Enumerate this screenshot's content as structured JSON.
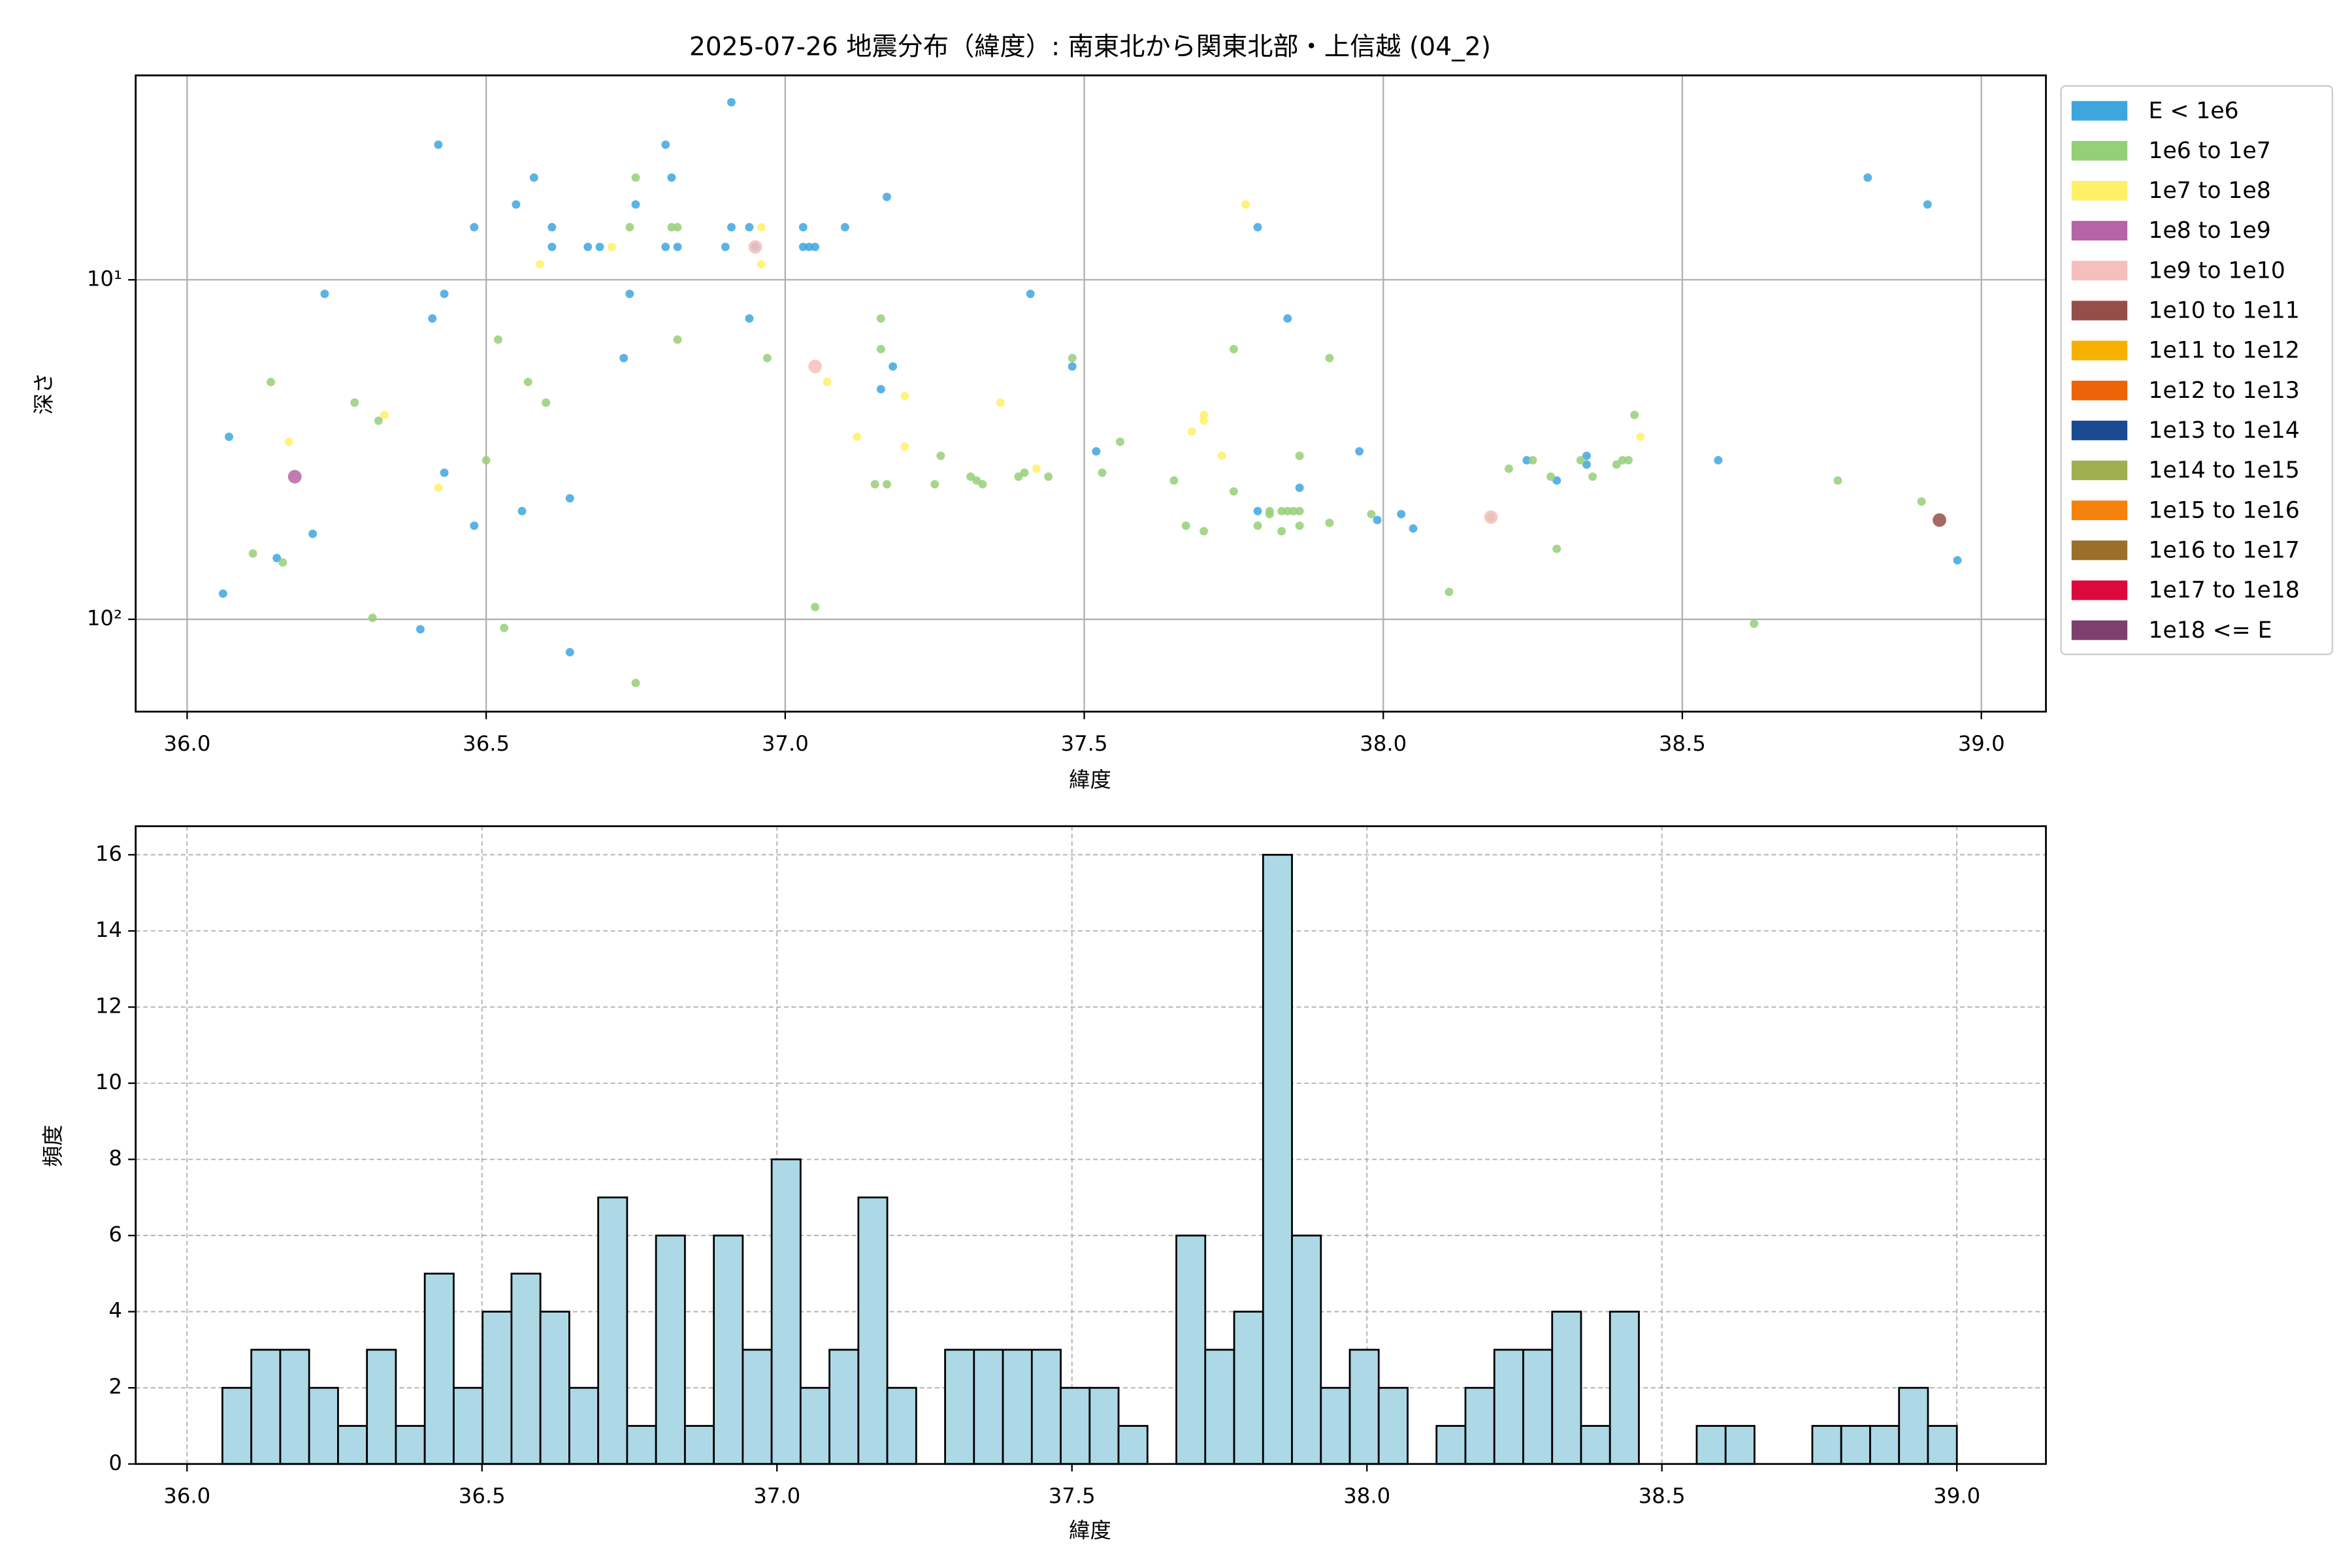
{
  "chart_data": [
    {
      "type": "scatter",
      "title": "2025-07-26 地震分布（緯度）: 南東北から関東北部・上信越 (04_2)",
      "xlabel": "緯度",
      "ylabel": "深さ",
      "xlim": [
        35.914,
        39.108
      ],
      "ylim": [
        187,
        2.5
      ],
      "ylog": true,
      "grid": true,
      "legend": "right",
      "xticks": [
        {
          "value": 36,
          "label": "36.0"
        },
        {
          "value": 36.5,
          "label": "36.5"
        },
        {
          "value": 37,
          "label": "37.0"
        },
        {
          "value": 37.5,
          "label": "37.5"
        },
        {
          "value": 38,
          "label": "38.0"
        },
        {
          "value": 38.5,
          "label": "38.5"
        },
        {
          "value": 39,
          "label": "39.0"
        }
      ],
      "yticks": [
        {
          "value": 10,
          "label": "10¹"
        },
        {
          "value": 100,
          "label": "10²"
        }
      ],
      "series": [
        {
          "name": "E < 1e6",
          "color": "#3ea6df",
          "x": [
            36.06,
            36.07,
            36.15,
            36.21,
            36.23,
            36.39,
            36.41,
            36.42,
            36.43,
            36.43,
            36.48,
            36.48,
            36.55,
            36.56,
            36.58,
            36.61,
            36.61,
            36.64,
            36.64,
            36.67,
            36.69,
            36.73,
            36.74,
            36.75,
            36.8,
            36.8,
            36.81,
            36.82,
            36.91,
            36.91,
            36.9,
            36.94,
            36.94,
            36.95,
            37.03,
            37.03,
            37.04,
            37.05,
            37.1,
            37.16,
            37.17,
            37.18,
            37.41,
            37.48,
            37.52,
            37.79,
            37.79,
            37.84,
            37.86,
            37.96,
            37.99,
            38.03,
            38.05,
            38.24,
            38.29,
            38.34,
            38.34,
            38.56,
            38.81,
            38.91,
            38.96
          ],
          "values": [
            84,
            29,
            66,
            56,
            11,
            107,
            13,
            4,
            11,
            37,
            53,
            7,
            6,
            48,
            5,
            7,
            8,
            125,
            44,
            8,
            8,
            17,
            11,
            6,
            4,
            8,
            5,
            8,
            3,
            7,
            8,
            13,
            7,
            8,
            7,
            8,
            8,
            8,
            7,
            21,
            5.7,
            18,
            11,
            18,
            32,
            48,
            7,
            13,
            41,
            32,
            51,
            49,
            54,
            34,
            39,
            35,
            33,
            34,
            5,
            6,
            67
          ]
        },
        {
          "name": "1e6 to 1e7",
          "color": "#95cf78",
          "x": [
            36.11,
            36.14,
            36.16,
            36.28,
            36.31,
            36.32,
            36.5,
            36.52,
            36.53,
            36.57,
            36.6,
            36.74,
            36.75,
            36.75,
            36.81,
            36.82,
            36.82,
            36.97,
            37.05,
            37.15,
            37.16,
            37.16,
            37.17,
            37.25,
            37.26,
            37.31,
            37.32,
            37.33,
            37.39,
            37.4,
            37.44,
            37.48,
            37.53,
            37.56,
            37.65,
            37.67,
            37.7,
            37.75,
            37.75,
            37.79,
            37.81,
            37.83,
            37.83,
            37.81,
            37.84,
            37.85,
            37.86,
            37.86,
            37.86,
            37.91,
            37.91,
            37.98,
            38.11,
            38.18,
            38.21,
            38.25,
            38.28,
            38.29,
            38.33,
            38.35,
            38.39,
            38.4,
            38.41,
            38.42,
            38.62,
            38.76,
            38.9
          ],
          "values": [
            64,
            20,
            68,
            23,
            99,
            26,
            34,
            15,
            106,
            20,
            23,
            7,
            5,
            154,
            7,
            7,
            15,
            17,
            92,
            40,
            13,
            16,
            40,
            40,
            33,
            38,
            39,
            40,
            38,
            37,
            38,
            17,
            37,
            30,
            39,
            53,
            55,
            42,
            16,
            53,
            49,
            55,
            48,
            48,
            48,
            48,
            53,
            48,
            33,
            17,
            52,
            49,
            83,
            50,
            36,
            34,
            38,
            62,
            34,
            38,
            35,
            34,
            34,
            25,
            103,
            39,
            45
          ]
        },
        {
          "name": "1e7 to 1e8",
          "color": "#fff068",
          "x": [
            36.17,
            36.33,
            36.42,
            36.59,
            36.71,
            36.96,
            36.96,
            37.07,
            37.12,
            37.2,
            37.2,
            37.36,
            37.42,
            37.68,
            37.7,
            37.7,
            37.73,
            37.77,
            38.43
          ],
          "values": [
            30,
            25,
            41,
            9,
            8,
            7,
            9,
            20,
            29,
            22,
            31,
            23,
            36,
            28,
            25,
            26,
            33,
            6,
            29
          ]
        },
        {
          "name": "1e8 to 1e9",
          "color": "#b764a6",
          "x": [
            36.18
          ],
          "values": [
            38
          ]
        },
        {
          "name": "1e9 to 1e10",
          "color": "#f5bfbb",
          "x": [
            37.05,
            36.95,
            38.18
          ],
          "values": [
            18,
            8,
            50
          ]
        },
        {
          "name": "1e10 to 1e11",
          "color": "#954f4a",
          "x": [
            38.93
          ],
          "values": [
            51
          ]
        },
        {
          "name": "1e11 to 1e12",
          "color": "#f5b000",
          "x": [],
          "values": []
        },
        {
          "name": "1e12 to 1e13",
          "color": "#ec6308",
          "x": [],
          "values": []
        },
        {
          "name": "1e13 to 1e14",
          "color": "#1a4a92",
          "x": [],
          "values": []
        },
        {
          "name": "1e14 to 1e15",
          "color": "#a0b050",
          "x": [],
          "values": []
        },
        {
          "name": "1e15 to 1e16",
          "color": "#f5820d",
          "x": [],
          "values": []
        },
        {
          "name": "1e16 to 1e17",
          "color": "#9a6f2a",
          "x": [],
          "values": []
        },
        {
          "name": "1e17 to 1e18",
          "color": "#dc0a3c",
          "x": [],
          "values": []
        },
        {
          "name": "1e18 <= E",
          "color": "#7d3f6d",
          "x": [],
          "values": []
        }
      ]
    },
    {
      "type": "histogram",
      "xlabel": "緯度",
      "ylabel": "頻度",
      "xlim": [
        35.913,
        39.151
      ],
      "ylim": [
        0,
        16.75
      ],
      "grid": true,
      "grid_style": "dashed",
      "color": "#add8e6",
      "edgecolor": "#000000",
      "xticks": [
        {
          "value": 36,
          "label": "36.0"
        },
        {
          "value": 36.5,
          "label": "36.5"
        },
        {
          "value": 37,
          "label": "37.0"
        },
        {
          "value": 37.5,
          "label": "37.5"
        },
        {
          "value": 38,
          "label": "38.0"
        },
        {
          "value": 38.5,
          "label": "38.5"
        },
        {
          "value": 39,
          "label": "39.0"
        }
      ],
      "yticks": [
        0,
        2,
        4,
        6,
        8,
        10,
        12,
        14,
        16
      ],
      "bins": [
        36.06,
        36.109,
        36.158,
        36.207,
        36.256,
        36.305,
        36.354,
        36.403,
        36.452,
        36.501,
        36.55,
        36.599,
        36.648,
        36.697,
        36.746,
        36.795,
        36.844,
        36.893,
        36.942,
        36.991,
        37.04,
        37.089,
        37.138,
        37.187,
        37.236,
        37.285,
        37.334,
        37.383,
        37.432,
        37.481,
        37.53,
        37.579,
        37.628,
        37.677,
        37.726,
        37.775,
        37.824,
        37.873,
        37.922,
        37.971,
        38.02,
        38.069,
        38.118,
        38.167,
        38.216,
        38.265,
        38.314,
        38.363,
        38.412,
        38.461,
        38.51,
        38.559,
        38.608,
        38.657,
        38.706,
        38.755,
        38.804,
        38.853,
        38.902,
        38.951,
        39.0
      ],
      "values": [
        2,
        3,
        3,
        2,
        1,
        3,
        1,
        5,
        2,
        4,
        5,
        4,
        2,
        7,
        1,
        6,
        1,
        6,
        3,
        8,
        2,
        3,
        7,
        2,
        0,
        3,
        3,
        3,
        3,
        2,
        2,
        1,
        0,
        6,
        3,
        4,
        16,
        6,
        2,
        3,
        2,
        0,
        1,
        2,
        3,
        3,
        4,
        1,
        4,
        0,
        0,
        1,
        1,
        0,
        0,
        1,
        1,
        1,
        2,
        1
      ]
    }
  ]
}
